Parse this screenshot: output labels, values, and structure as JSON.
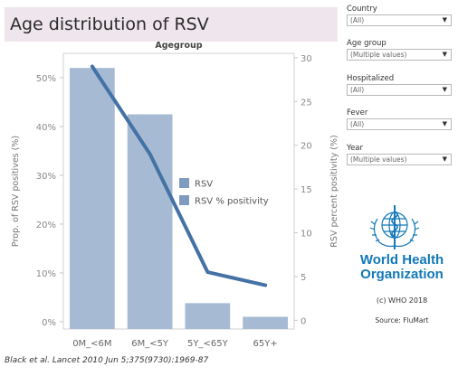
{
  "title": "Age distribution of RSV",
  "filters": [
    {
      "label": "Country",
      "value": "(All)"
    },
    {
      "label": "Age group",
      "value": "(Multiple values)"
    },
    {
      "label": "Hospitalized",
      "value": "(All)"
    },
    {
      "label": "Fever",
      "value": "(All)"
    },
    {
      "label": "Year",
      "value": "(Multiple values)"
    }
  ],
  "who": {
    "line1": "World Health",
    "line2": "Organization",
    "icon": "who-emblem-icon"
  },
  "copyright": "(c) WHO 2018",
  "source": "Source: FluMart",
  "citation": "Black et al. Lancet 2010 Jun 5;375(9730):1969-87",
  "chart_data": {
    "type": "bar",
    "header": "Agegroup",
    "categories": [
      "0M_<6M",
      "6M_<5Y",
      "5Y_<65Y",
      "65Y+"
    ],
    "series": [
      {
        "name": "RSV",
        "type": "bar",
        "axis": "left",
        "color": "#a6bad3",
        "values": [
          52,
          42.5,
          3.8,
          1.0
        ]
      },
      {
        "name": "RSV % positivity",
        "type": "line",
        "axis": "right",
        "color": "#4472a5",
        "values": [
          29,
          19,
          5.5,
          4
        ]
      }
    ],
    "y_left": {
      "label": "Prop. of RSV positives (%)",
      "ylim": [
        -1.5,
        55
      ],
      "ticks": [
        0,
        10,
        20,
        30,
        40,
        50
      ],
      "tick_labels": [
        "0%",
        "10%",
        "20%",
        "30%",
        "40%",
        "50%"
      ]
    },
    "y_right": {
      "label": "RSV percent positivity (%)",
      "ylim": [
        -1,
        30.5
      ],
      "ticks": [
        0,
        5,
        10,
        15,
        20,
        25,
        30
      ],
      "tick_labels": [
        "0",
        "5",
        "10",
        "15",
        "20",
        "25",
        "30"
      ]
    },
    "legend": {
      "position": "center-right",
      "items": [
        {
          "label": "RSV",
          "color": "#7f9cc0"
        },
        {
          "label": "RSV % positivity",
          "color": "#7f9cc0"
        }
      ]
    },
    "grid": false
  }
}
